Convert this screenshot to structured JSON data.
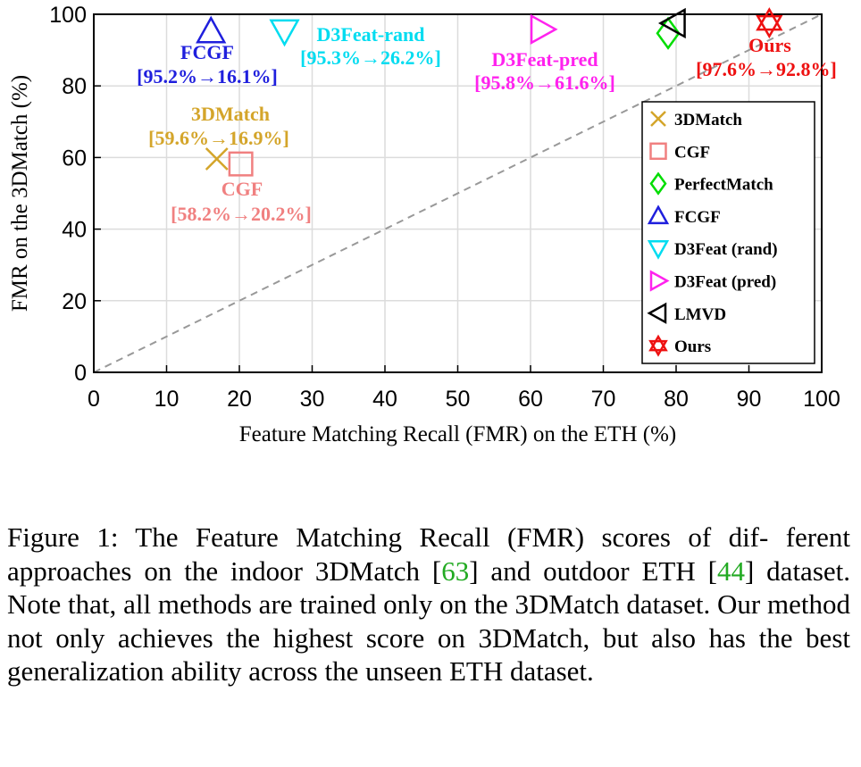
{
  "chart_data": {
    "type": "scatter",
    "xlabel": "Feature Matching Recall (FMR) on the ETH (%)",
    "ylabel": "FMR on the 3DMatch (%)",
    "xlim": [
      0,
      100
    ],
    "ylim": [
      0,
      100
    ],
    "xticks": [
      "0",
      "10",
      "20",
      "30",
      "40",
      "50",
      "60",
      "70",
      "80",
      "90",
      "100"
    ],
    "yticks": [
      "0",
      "20",
      "40",
      "60",
      "80",
      "100"
    ],
    "grid": true,
    "diagonal_reference_line": true,
    "legend_position": "right",
    "series": [
      {
        "name": "3DMatch",
        "x": 16.9,
        "y": 59.6,
        "marker": "x",
        "color": "#d4a52a",
        "annotation": [
          "3DMatch",
          "[59.6%→16.9%]"
        ]
      },
      {
        "name": "CGF",
        "x": 20.2,
        "y": 58.2,
        "marker": "square",
        "color": "#f08080",
        "annotation": [
          "CGF",
          "[58.2%→20.2%]"
        ]
      },
      {
        "name": "PerfectMatch",
        "x": 78.9,
        "y": 94.7,
        "marker": "diamond",
        "color": "#00dd00",
        "annotation": []
      },
      {
        "name": "FCGF",
        "x": 16.1,
        "y": 95.2,
        "marker": "triangle-up",
        "color": "#1f1fdd",
        "annotation": [
          "FCGF",
          "[95.2%→16.1%]"
        ]
      },
      {
        "name": "D3Feat (rand)",
        "x": 26.2,
        "y": 95.3,
        "marker": "triangle-down",
        "color": "#00dcf0",
        "annotation": [
          "D3Feat-rand",
          "[95.3%→26.2%]"
        ]
      },
      {
        "name": "D3Feat (pred)",
        "x": 61.6,
        "y": 95.8,
        "marker": "triangle-right",
        "color": "#ff22ee",
        "annotation": [
          "D3Feat-pred",
          "[95.8%→61.6%]"
        ]
      },
      {
        "name": "LMVD",
        "x": 79.7,
        "y": 97.5,
        "marker": "triangle-left",
        "color": "#000000",
        "annotation": []
      },
      {
        "name": "Ours",
        "x": 92.8,
        "y": 97.6,
        "marker": "hexagram",
        "color": "#ee1111",
        "annotation": [
          "Ours",
          "[97.6%→92.8%]"
        ]
      }
    ]
  },
  "caption": {
    "prefix": "Figure 1: The Feature Matching Recall (FMR) scores of dif- ferent approaches on the indoor 3DMatch [",
    "ref1": "63",
    "middle": "] and outdoor ETH [",
    "ref2": "44",
    "suffix": "] dataset. Note that, all methods are trained only on the 3DMatch dataset. Our method not only achieves the highest score on 3DMatch, but also has the best generalization ability across the unseen ETH dataset."
  }
}
